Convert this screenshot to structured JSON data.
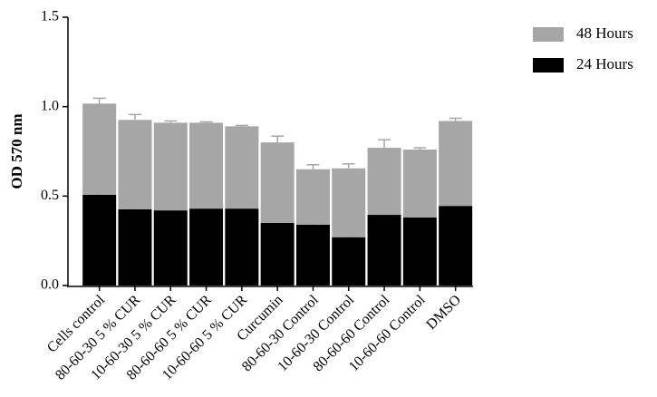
{
  "chart_data": {
    "type": "stacked_bar",
    "y_label": "OD 570 nm",
    "categories": [
      "Cells control",
      "80-60-30 5 % CUR",
      "10-60-30 5 % CUR",
      "80-60-60 5 % CUR",
      "10-60-60 5 % CUR",
      "Curcumin",
      "80-60-30 Control",
      "10-60-30 Control",
      "80-60-60 Control",
      "10-60-60 Control",
      "DMSO"
    ],
    "series": [
      {
        "name": "24 Hours",
        "color": "#000000",
        "values": [
          0.507,
          0.426,
          0.42,
          0.43,
          0.43,
          0.35,
          0.34,
          0.27,
          0.395,
          0.38,
          0.445
        ],
        "errors": [
          0.025,
          0.015,
          0.012,
          0.045,
          0.02,
          0.055,
          0.01,
          0.05,
          0.075,
          0.06,
          0.025
        ]
      },
      {
        "name": "48 Hours",
        "color": "#a6a6a6",
        "values": [
          0.51,
          0.5,
          0.49,
          0.48,
          0.46,
          0.45,
          0.31,
          0.385,
          0.375,
          0.38,
          0.475
        ],
        "errors": [
          0.03,
          0.03,
          0.01,
          0.005,
          0.005,
          0.035,
          0.025,
          0.025,
          0.045,
          0.01,
          0.015
        ]
      }
    ],
    "ylim": [
      0,
      1.5
    ],
    "yticks": [
      {
        "value": 0,
        "label": "0.0"
      },
      {
        "value": 0.5,
        "label": "0.5"
      },
      {
        "value": 1,
        "label": "1.0"
      },
      {
        "value": 1.5,
        "label": "1.5"
      }
    ],
    "grid": false,
    "legend": "right"
  }
}
